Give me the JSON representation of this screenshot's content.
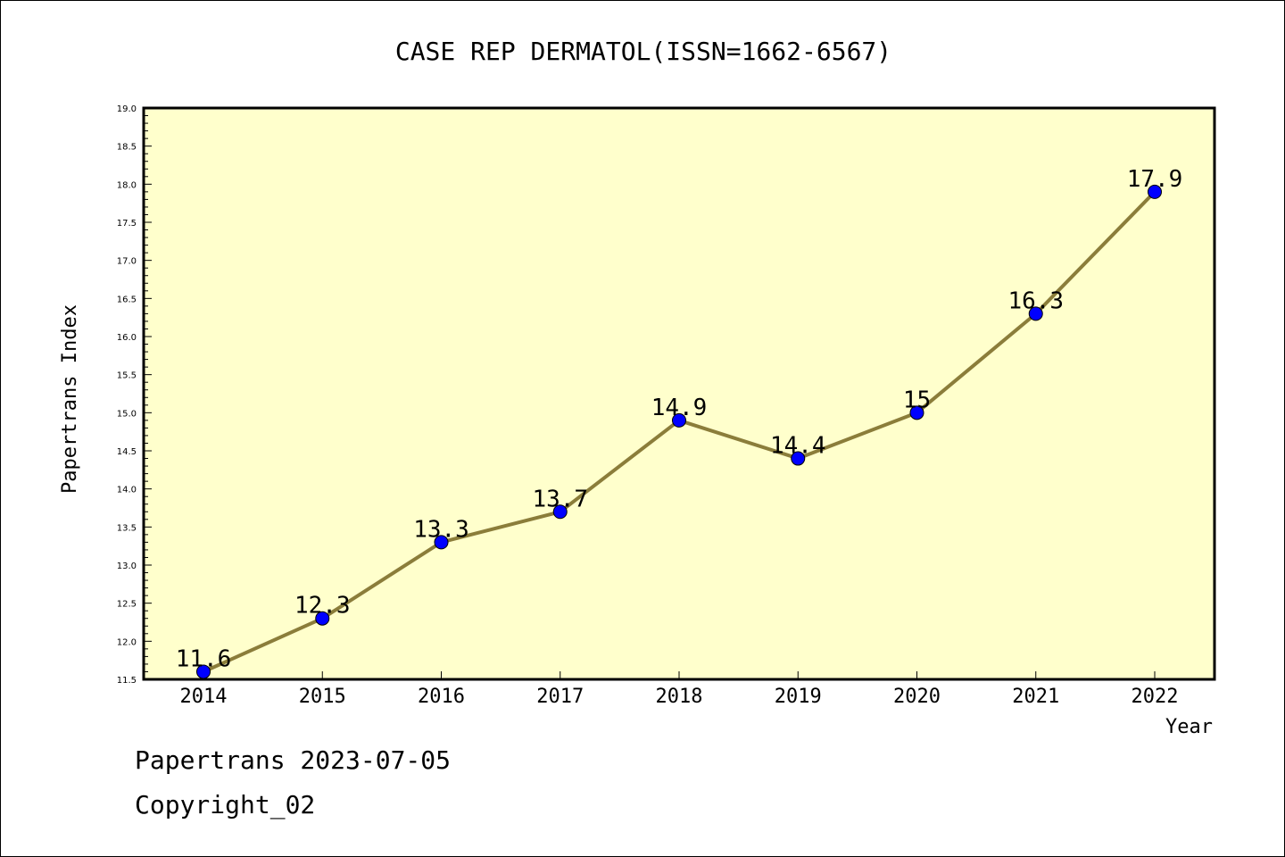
{
  "chart_data": {
    "type": "line",
    "title": "CASE REP DERMATOL(ISSN=1662-6567)",
    "xlabel": "Year",
    "ylabel": "Papertrans Index",
    "categories": [
      "2014",
      "2015",
      "2016",
      "2017",
      "2018",
      "2019",
      "2020",
      "2021",
      "2022"
    ],
    "values": [
      11.6,
      12.3,
      13.3,
      13.7,
      14.9,
      14.4,
      15,
      16.3,
      17.9
    ],
    "data_labels": [
      "11.6",
      "12.3",
      "13.3",
      "13.7",
      "14.9",
      "14.4",
      "15",
      "16.3",
      "17.9"
    ],
    "ylim": [
      11.5,
      19.0
    ],
    "yticks": [
      "11.5",
      "12.0",
      "12.5",
      "13.0",
      "13.5",
      "14.0",
      "14.5",
      "15.0",
      "15.5",
      "16.0",
      "16.5",
      "17.0",
      "17.5",
      "18.0",
      "18.5",
      "19.0"
    ],
    "grid": false,
    "legend": "none",
    "colors": {
      "plot_background": "#ffffcc",
      "line": "#8b7d3a",
      "marker": "#0000ff"
    }
  },
  "footer": {
    "line1": "Papertrans 2023-07-05",
    "line2": "Copyright_02"
  }
}
